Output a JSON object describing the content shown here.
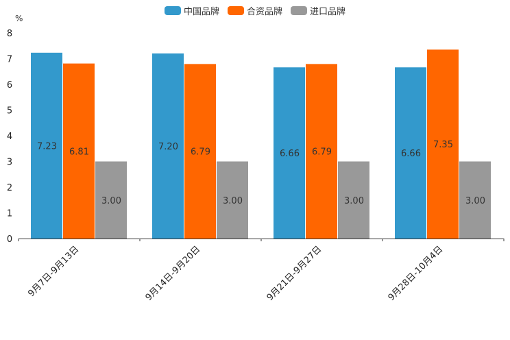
{
  "chart_data": {
    "type": "bar",
    "unit": "%",
    "categories": [
      "9月7日-9月13日",
      "9月14日-9月20日",
      "9月21日-9月27日",
      "9月28日-10月4日"
    ],
    "series": [
      {
        "name": "中国品牌",
        "color": "#3399cc",
        "values": [
          7.23,
          7.2,
          6.66,
          6.66
        ],
        "labels": [
          "7.23",
          "7.20",
          "6.66",
          "6.66"
        ]
      },
      {
        "name": "合资品牌",
        "color": "#ff6600",
        "values": [
          6.81,
          6.79,
          6.79,
          7.35
        ],
        "labels": [
          "6.81",
          "6.79",
          "6.79",
          "7.35"
        ]
      },
      {
        "name": "进口品牌",
        "color": "#999999",
        "values": [
          3.0,
          3.0,
          3.0,
          3.0
        ],
        "labels": [
          "3.00",
          "3.00",
          "3.00",
          "3.00"
        ]
      }
    ],
    "ylim": [
      0,
      8
    ],
    "yticks": [
      "0",
      "1",
      "2",
      "3",
      "4",
      "5",
      "6",
      "7",
      "8"
    ],
    "legend_position": "top-center"
  }
}
